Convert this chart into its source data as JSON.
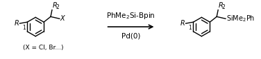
{
  "background_color": "#ffffff",
  "line_color": "#000000",
  "reagent_line1": "PhMe₂Si-Bpin",
  "reagent_line2": "Pd(0)",
  "footnote": "(X = Cl, Br...)",
  "font_size_reagent": 7.5,
  "font_size_label": 7.0,
  "font_size_footnote": 6.5,
  "fig_width": 3.76,
  "fig_height": 0.86,
  "dpi": 100,
  "lw": 1.0
}
